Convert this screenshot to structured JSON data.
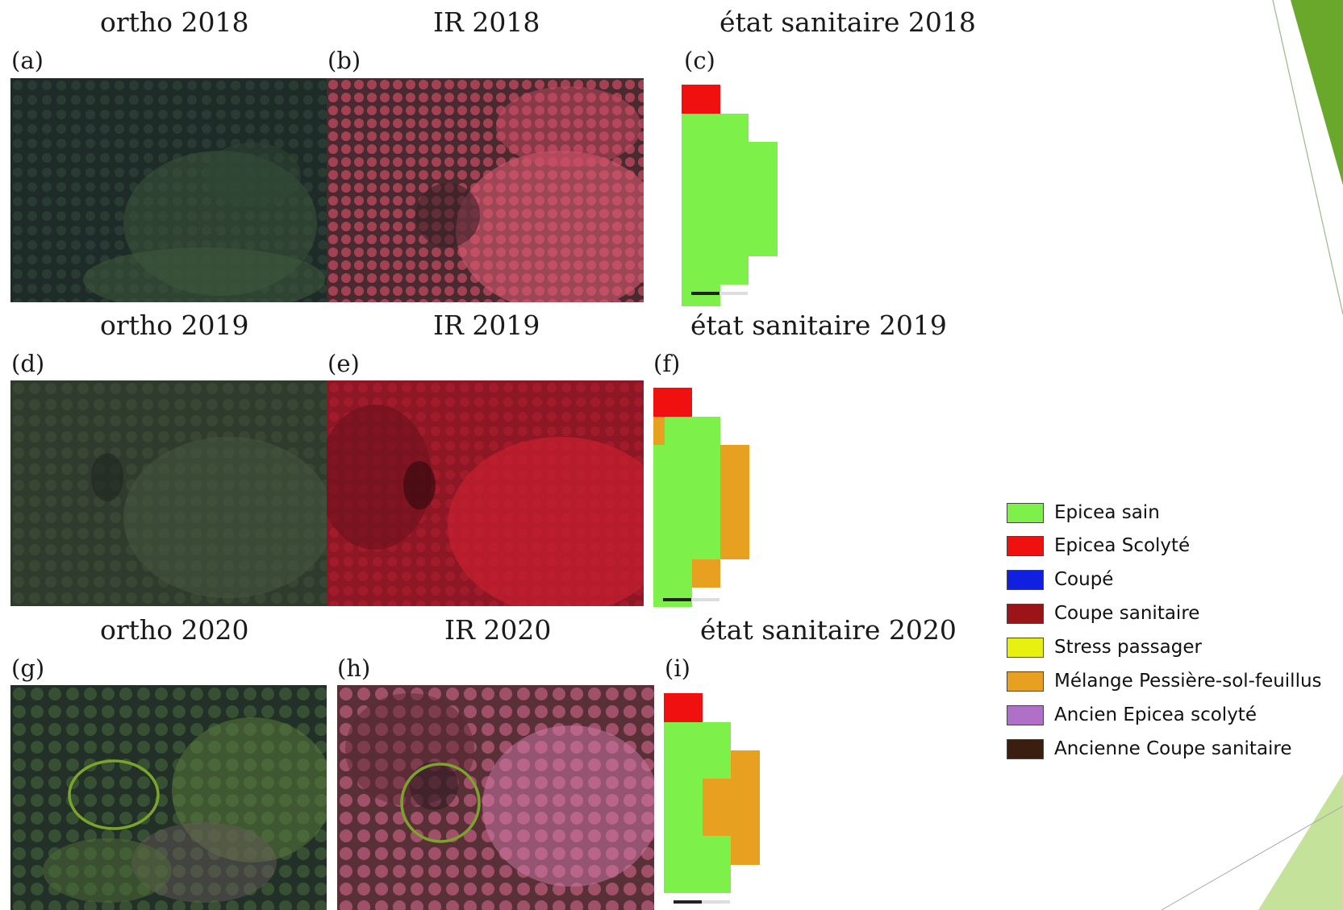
{
  "panels": [
    {
      "title": "ortho 2018",
      "label": "(a)"
    },
    {
      "title": "IR 2018",
      "label": "(b)"
    },
    {
      "title": "état sanitaire 2018",
      "label": "(c)"
    },
    {
      "title": "ortho 2019",
      "label": "(d)"
    },
    {
      "title": "IR 2019",
      "label": "(e)"
    },
    {
      "title": "état sanitaire 2019",
      "label": "(f)"
    },
    {
      "title": "ortho 2020",
      "label": "(g)"
    },
    {
      "title": "IR 2020",
      "label": "(h)"
    },
    {
      "title": "état sanitaire 2020",
      "label": "(i)"
    }
  ],
  "legend": {
    "items": [
      {
        "label": "Epicea sain",
        "color": "#7ef04a"
      },
      {
        "label": "Epicea Scolyté",
        "color": "#f01010"
      },
      {
        "label": "Coupé",
        "color": "#1020e0"
      },
      {
        "label": "Coupe sanitaire",
        "color": "#9a1418"
      },
      {
        "label": "Stress passager",
        "color": "#e8f010"
      },
      {
        "label": "Mélange Pessière-sol-feuillus",
        "color": "#e8a020"
      },
      {
        "label": "Ancien Epicea scolyté",
        "color": "#b070c8"
      },
      {
        "label": "Ancienne Coupe sanitaire",
        "color": "#3a1e10"
      }
    ]
  },
  "annotations": {
    "circle_color": "#7aa52a"
  },
  "theme": {
    "accent_green": "#6aa82c",
    "light_green": "#b8dc8a"
  }
}
